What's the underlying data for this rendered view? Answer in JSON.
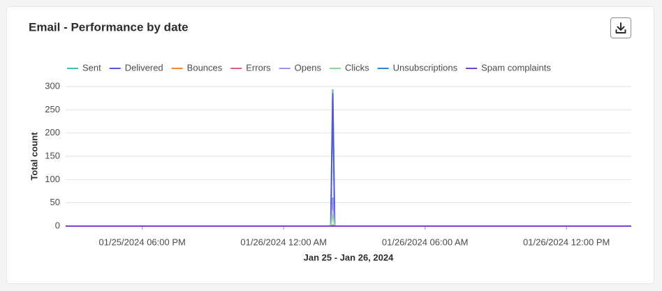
{
  "chart_data": {
    "type": "line",
    "title": "Email - Performance by date",
    "x_label": "Jan 25 - Jan 26, 2024",
    "y_label": "Total count",
    "x": [
      "2024-01-25T14:45",
      "2024-01-26T02:00",
      "2024-01-26T02:05",
      "2024-01-26T02:10",
      "2024-01-26T14:45"
    ],
    "xlim": [
      "2024-01-25T14:45",
      "2024-01-26T14:45"
    ],
    "xticks": [
      {
        "value": "2024-01-25T18:00",
        "label": "01/25/2024 06:00 PM"
      },
      {
        "value": "2024-01-26T00:00",
        "label": "01/26/2024 12:00 AM"
      },
      {
        "value": "2024-01-26T06:00",
        "label": "01/26/2024 06:00 AM"
      },
      {
        "value": "2024-01-26T12:00",
        "label": "01/26/2024 12:00 PM"
      }
    ],
    "ylim": [
      0,
      300
    ],
    "yticks": [
      0,
      50,
      100,
      150,
      200,
      250,
      300
    ],
    "grid": true,
    "legend": "top",
    "series": [
      {
        "name": "Sent",
        "color": "#3fc1b6",
        "values": [
          0,
          0,
          293,
          0,
          0
        ]
      },
      {
        "name": "Delivered",
        "color": "#5258d6",
        "values": [
          0,
          0,
          285,
          0,
          0
        ]
      },
      {
        "name": "Bounces",
        "color": "#f08c28",
        "values": [
          0,
          0,
          2,
          0,
          0
        ]
      },
      {
        "name": "Errors",
        "color": "#dd5b8d",
        "values": [
          0,
          0,
          0,
          0,
          0
        ]
      },
      {
        "name": "Opens",
        "color": "#9b93ee",
        "values": [
          0,
          0,
          60,
          0,
          0
        ]
      },
      {
        "name": "Clicks",
        "color": "#8fd98f",
        "values": [
          0,
          0,
          25,
          0,
          0
        ]
      },
      {
        "name": "Unsubscriptions",
        "color": "#2b85d8",
        "values": [
          0,
          0,
          1,
          0,
          0
        ]
      },
      {
        "name": "Spam complaints",
        "color": "#7b3fd0",
        "values": [
          0,
          0,
          0,
          0,
          0
        ]
      }
    ]
  }
}
